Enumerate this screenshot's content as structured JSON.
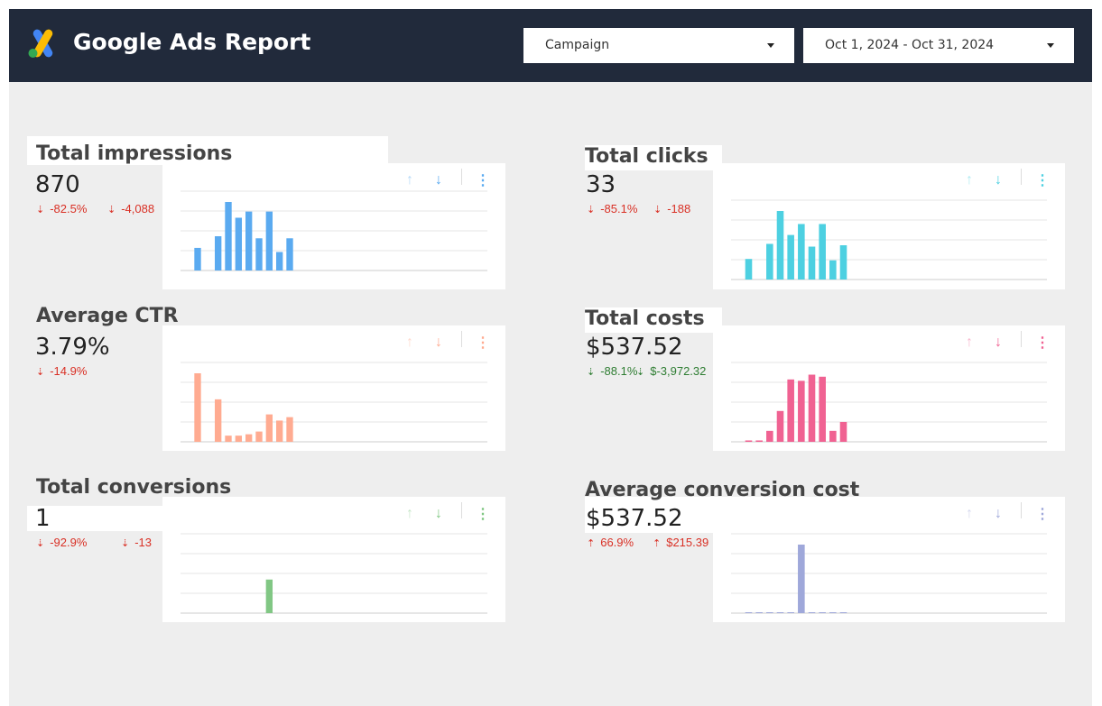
{
  "header": {
    "title": "Google Ads Report",
    "campaign_dropdown": {
      "value": "Campaign"
    },
    "date_dropdown": {
      "value": "Oct 1, 2024 - Oct 31, 2024"
    },
    "colors": {
      "background": "#212a3b"
    }
  },
  "metrics": [
    {
      "id": "impressions",
      "label": "Total impressions",
      "value": "870",
      "delta_pct": "-82.5%",
      "delta_abs": "-4,088",
      "delta_dir": "down",
      "delta_good": false,
      "color": "#5aaaf0",
      "bars": [
        0,
        0.33,
        0,
        0.5,
        1.0,
        0.77,
        0.86,
        0.47,
        0.86,
        0.27,
        0.47,
        0,
        0,
        0,
        0,
        0,
        0,
        0,
        0,
        0,
        0,
        0,
        0,
        0,
        0,
        0,
        0,
        0,
        0,
        0
      ]
    },
    {
      "id": "clicks",
      "label": "Total clicks",
      "value": "33",
      "delta_pct": "-85.1%",
      "delta_abs": "-188",
      "delta_dir": "down",
      "delta_good": false,
      "color": "#4dd0e1",
      "bars": [
        0,
        0.3,
        0,
        0.52,
        1.0,
        0.65,
        0.81,
        0.48,
        0.81,
        0.28,
        0.5,
        0,
        0,
        0,
        0,
        0,
        0,
        0,
        0,
        0,
        0,
        0,
        0,
        0,
        0,
        0,
        0,
        0,
        0,
        0
      ]
    },
    {
      "id": "ctr",
      "label": "Average CTR",
      "value": "3.79%",
      "delta_pct": "-14.9%",
      "delta_abs": "",
      "delta_dir": "down",
      "delta_good": false,
      "color": "#ffab91",
      "bars": [
        0,
        1.0,
        0,
        0.62,
        0.09,
        0.09,
        0.11,
        0.15,
        0.4,
        0.31,
        0.36,
        0,
        0,
        0,
        0,
        0,
        0,
        0,
        0,
        0,
        0,
        0,
        0,
        0,
        0,
        0,
        0,
        0,
        0,
        0
      ]
    },
    {
      "id": "costs",
      "label": "Total costs",
      "value": "$537.52",
      "delta_pct": "-88.1%",
      "delta_abs": "$-3,972.32",
      "delta_dir": "down",
      "delta_good": true,
      "color": "#f06292",
      "bars": [
        0,
        0.02,
        0.02,
        0.16,
        0.45,
        0.91,
        0.89,
        0.98,
        0.95,
        0.16,
        0.29,
        0,
        0,
        0,
        0,
        0,
        0,
        0,
        0,
        0,
        0,
        0,
        0,
        0,
        0,
        0,
        0,
        0,
        0,
        0
      ]
    },
    {
      "id": "conversions",
      "label": "Total conversions",
      "value": "1",
      "delta_pct": "-92.9%",
      "delta_abs": "-13",
      "delta_dir": "down",
      "delta_good": false,
      "color": "#81c784",
      "bars": [
        0,
        0,
        0,
        0,
        0,
        0,
        0,
        0,
        0.49,
        0,
        0,
        0,
        0,
        0,
        0,
        0,
        0,
        0,
        0,
        0,
        0,
        0,
        0,
        0,
        0,
        0,
        0,
        0,
        0,
        0
      ]
    },
    {
      "id": "conv-cost",
      "label": "Average conversion cost",
      "value": "$537.52",
      "delta_pct": "66.9%",
      "delta_abs": "$215.39",
      "delta_dir": "up",
      "delta_good": false,
      "color": "#9fa8da",
      "bars": [
        0,
        0.01,
        0.01,
        0.01,
        0.01,
        0.01,
        1.0,
        0.01,
        0.01,
        0.01,
        0.01,
        0,
        0,
        0,
        0,
        0,
        0,
        0,
        0,
        0,
        0,
        0,
        0,
        0,
        0,
        0,
        0,
        0,
        0,
        0
      ]
    }
  ],
  "icons": {
    "sort_up": "arrow-up-icon",
    "sort_down": "arrow-down-icon",
    "more": "more-vert-icon"
  }
}
